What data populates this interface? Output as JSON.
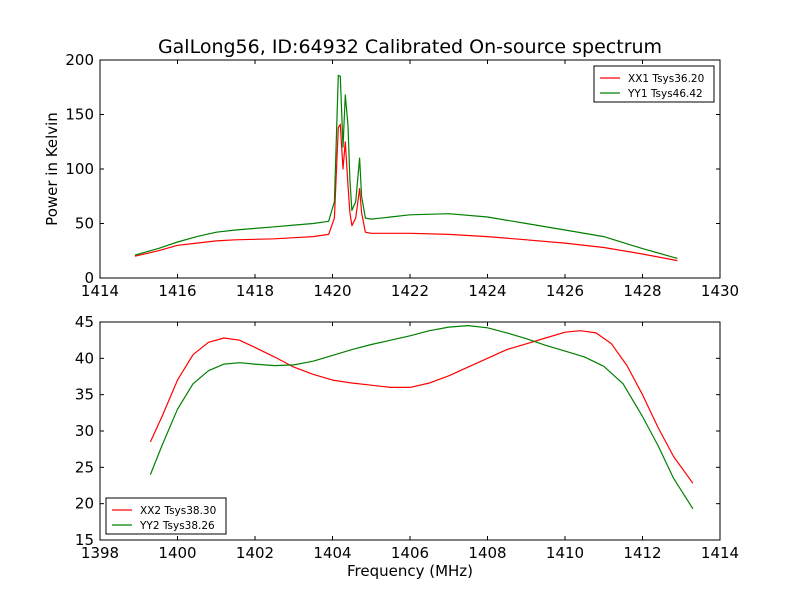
{
  "chart_data": [
    {
      "type": "line",
      "title": "GalLong56, ID:64932 Calibrated On-source spectrum",
      "xlabel": "",
      "ylabel": "Power in Kelvin",
      "xlim": [
        1414,
        1430
      ],
      "ylim": [
        0,
        200
      ],
      "xticks": [
        1414,
        1416,
        1418,
        1420,
        1422,
        1424,
        1426,
        1428,
        1430
      ],
      "yticks": [
        0,
        50,
        100,
        150,
        200
      ],
      "legend_position": "top-right",
      "series": [
        {
          "name": "XX1 Tsys36.20",
          "color": "#ff0000",
          "x": [
            1414.9,
            1415.5,
            1416.0,
            1416.5,
            1417.0,
            1417.5,
            1418.0,
            1418.5,
            1419.0,
            1419.5,
            1419.9,
            1420.05,
            1420.15,
            1420.2,
            1420.27,
            1420.33,
            1420.4,
            1420.45,
            1420.5,
            1420.6,
            1420.7,
            1420.75,
            1420.85,
            1421.0,
            1421.5,
            1422.0,
            1423.0,
            1424.0,
            1425.0,
            1426.0,
            1427.0,
            1428.0,
            1428.9
          ],
          "y": [
            20,
            25,
            30,
            32,
            34,
            35,
            35.5,
            36,
            37,
            38,
            40,
            55,
            138,
            141,
            100,
            125,
            85,
            60,
            48,
            55,
            82,
            60,
            42,
            41,
            41,
            41,
            40,
            38,
            35,
            32,
            28,
            22,
            16
          ]
        },
        {
          "name": "YY1 Tsys46.42",
          "color": "#008000",
          "x": [
            1414.9,
            1415.5,
            1416.0,
            1416.5,
            1417.0,
            1417.5,
            1418.0,
            1418.5,
            1419.0,
            1419.5,
            1419.9,
            1420.05,
            1420.15,
            1420.2,
            1420.27,
            1420.33,
            1420.4,
            1420.45,
            1420.5,
            1420.6,
            1420.7,
            1420.75,
            1420.85,
            1421.0,
            1421.5,
            1422.0,
            1423.0,
            1424.0,
            1425.0,
            1426.0,
            1427.0,
            1428.0,
            1428.9
          ],
          "y": [
            21,
            27,
            33,
            38,
            42,
            44,
            45.5,
            47,
            48.5,
            50,
            52,
            70,
            186,
            185,
            120,
            168,
            140,
            90,
            62,
            70,
            110,
            75,
            55,
            54,
            56,
            58,
            59,
            56,
            50,
            44,
            38,
            27,
            18
          ]
        }
      ]
    },
    {
      "type": "line",
      "title": "",
      "xlabel": "Frequency (MHz)",
      "ylabel": "",
      "xlim": [
        1398,
        1414
      ],
      "ylim": [
        15,
        45
      ],
      "xticks": [
        1398,
        1400,
        1402,
        1404,
        1406,
        1408,
        1410,
        1412,
        1414
      ],
      "yticks": [
        15,
        20,
        25,
        30,
        35,
        40,
        45
      ],
      "legend_position": "bottom-left",
      "series": [
        {
          "name": "XX2 Tsys38.30",
          "color": "#ff0000",
          "x": [
            1399.3,
            1399.6,
            1400.0,
            1400.4,
            1400.8,
            1401.2,
            1401.6,
            1402.0,
            1402.5,
            1403.0,
            1403.5,
            1404.0,
            1404.5,
            1405.0,
            1405.5,
            1406.0,
            1406.5,
            1407.0,
            1407.5,
            1408.0,
            1408.5,
            1409.0,
            1409.5,
            1410.0,
            1410.4,
            1410.8,
            1411.2,
            1411.6,
            1412.0,
            1412.4,
            1412.8,
            1413.3
          ],
          "y": [
            28.5,
            32,
            37,
            40.5,
            42.2,
            42.8,
            42.5,
            41.5,
            40.2,
            38.8,
            37.8,
            37.0,
            36.6,
            36.3,
            36.0,
            36.0,
            36.6,
            37.6,
            38.8,
            40.0,
            41.2,
            42.0,
            42.8,
            43.6,
            43.8,
            43.5,
            42.0,
            39.0,
            35.0,
            30.5,
            26.5,
            22.8
          ]
        },
        {
          "name": "YY2 Tsys38.26",
          "color": "#008000",
          "x": [
            1399.3,
            1399.6,
            1400.0,
            1400.4,
            1400.8,
            1401.2,
            1401.6,
            1402.0,
            1402.5,
            1403.0,
            1403.5,
            1404.0,
            1404.5,
            1405.0,
            1405.5,
            1406.0,
            1406.5,
            1407.0,
            1407.5,
            1408.0,
            1408.5,
            1409.0,
            1409.5,
            1410.0,
            1410.5,
            1411.0,
            1411.5,
            1412.0,
            1412.4,
            1412.8,
            1413.3
          ],
          "y": [
            24,
            28,
            33,
            36.5,
            38.3,
            39.2,
            39.4,
            39.2,
            39.0,
            39.1,
            39.6,
            40.4,
            41.2,
            41.9,
            42.5,
            43.1,
            43.8,
            44.3,
            44.5,
            44.2,
            43.5,
            42.7,
            41.8,
            41.0,
            40.2,
            38.9,
            36.5,
            32.0,
            28.0,
            23.5,
            19.3
          ]
        }
      ]
    }
  ]
}
